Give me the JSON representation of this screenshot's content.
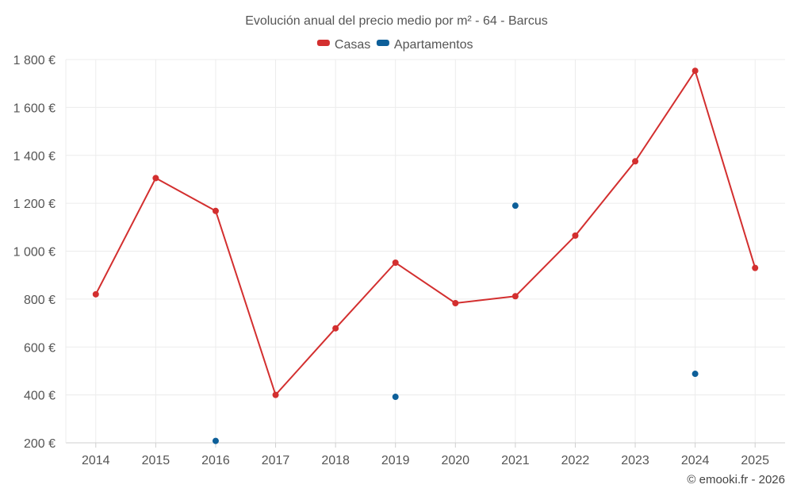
{
  "chart_data": {
    "type": "line",
    "title": "Evolución anual del precio medio por m² - 64 - Barcus",
    "categories": [
      "2014",
      "2015",
      "2016",
      "2017",
      "2018",
      "2019",
      "2020",
      "2021",
      "2022",
      "2023",
      "2024",
      "2025"
    ],
    "series": [
      {
        "name": "Casas",
        "color": "#d32f2f",
        "style": "line+markers",
        "values": [
          820,
          1305,
          1168,
          400,
          678,
          952,
          783,
          812,
          1065,
          1375,
          1753,
          930
        ]
      },
      {
        "name": "Apartamentos",
        "color": "#0d5f99",
        "style": "markers",
        "values": [
          null,
          null,
          208,
          null,
          null,
          392,
          null,
          1190,
          null,
          null,
          488,
          null
        ]
      }
    ],
    "ylim": [
      200,
      1800
    ],
    "yticks": [
      200,
      400,
      600,
      800,
      1000,
      1200,
      1400,
      1600,
      1800
    ],
    "ytick_labels": [
      "200 €",
      "400 €",
      "600 €",
      "800 €",
      "1 000 €",
      "1 200 €",
      "1 400 €",
      "1 600 €",
      "1 800 €"
    ],
    "xlabel": "",
    "ylabel": "",
    "grid": true,
    "legend_position": "top-center"
  },
  "credit": "© emooki.fr - 2026"
}
